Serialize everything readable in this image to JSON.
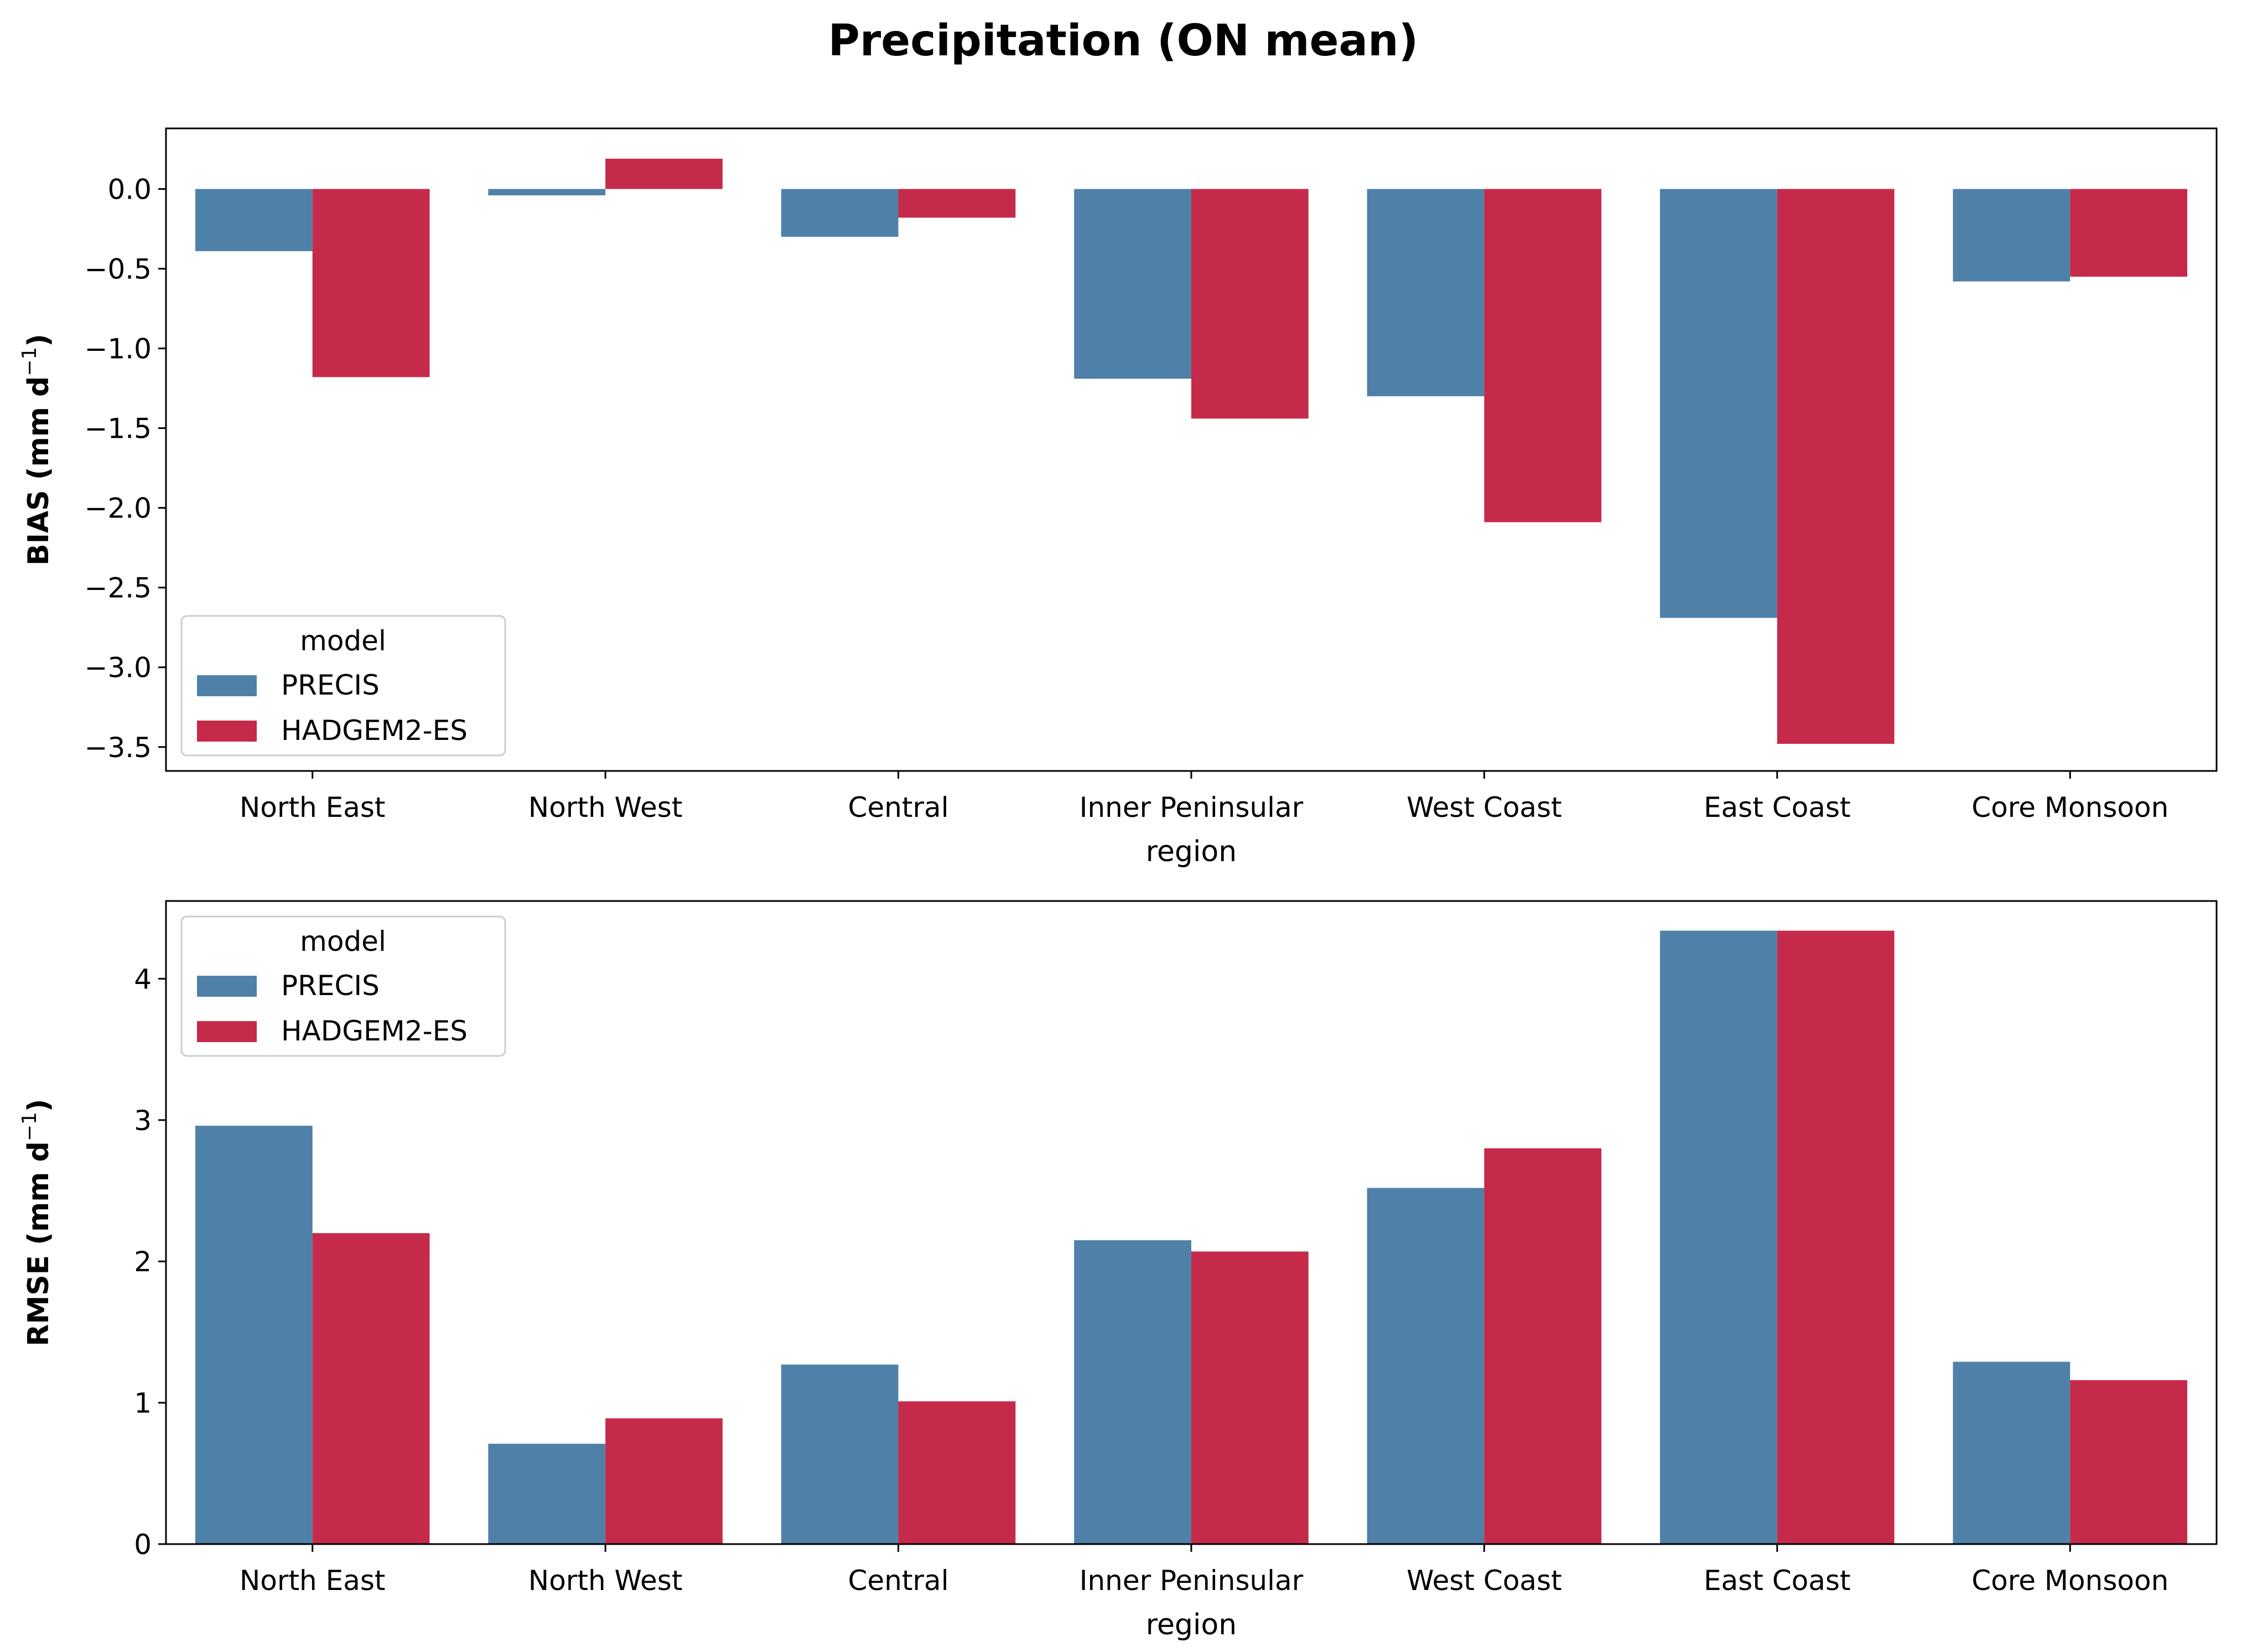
{
  "figure": {
    "title": "Precipitation (ON mean)"
  },
  "colors": {
    "PRECIS": "#4f81a8",
    "HADGEM2-ES": "#c62a4a",
    "axis": "#000000",
    "background": "#ffffff"
  },
  "chart_data": [
    {
      "type": "bar",
      "title": "",
      "xlabel": "region",
      "ylabel": "BIAS (mm d",
      "ylabel_sup": "−1",
      "ylabel_close": ")",
      "categories": [
        "North East",
        "North West",
        "Central",
        "Inner Peninsular",
        "West Coast",
        "East Coast",
        "Core Monsoon"
      ],
      "series": [
        {
          "name": "PRECIS",
          "values": [
            -0.39,
            -0.04,
            -0.3,
            -1.19,
            -1.3,
            -2.69,
            -0.58
          ]
        },
        {
          "name": "HADGEM2-ES",
          "values": [
            -1.18,
            0.19,
            -0.18,
            -1.44,
            -2.09,
            -3.48,
            -0.55
          ]
        }
      ],
      "ylim": [
        -3.65,
        0.38
      ],
      "yticks": [
        0.0,
        -0.5,
        -1.0,
        -1.5,
        -2.0,
        -2.5,
        -3.0,
        -3.5
      ],
      "ytick_labels": [
        "0.0",
        "−0.5",
        "−1.0",
        "−1.5",
        "−2.0",
        "−2.5",
        "−3.0",
        "−3.5"
      ],
      "grid": false,
      "legend": {
        "title": "model",
        "placement": "lower-left",
        "entries": [
          "PRECIS",
          "HADGEM2-ES"
        ]
      }
    },
    {
      "type": "bar",
      "title": "",
      "xlabel": "region",
      "ylabel": "RMSE (mm d",
      "ylabel_sup": "−1",
      "ylabel_close": ")",
      "categories": [
        "North East",
        "North West",
        "Central",
        "Inner Peninsular",
        "West Coast",
        "East Coast",
        "Core Monsoon"
      ],
      "series": [
        {
          "name": "PRECIS",
          "values": [
            2.96,
            0.71,
            1.27,
            2.15,
            2.52,
            4.34,
            1.29
          ]
        },
        {
          "name": "HADGEM2-ES",
          "values": [
            2.2,
            0.89,
            1.01,
            2.07,
            2.8,
            4.34,
            1.16
          ]
        }
      ],
      "ylim": [
        0,
        4.55
      ],
      "yticks": [
        0,
        1,
        2,
        3,
        4
      ],
      "ytick_labels": [
        "0",
        "1",
        "2",
        "3",
        "4"
      ],
      "grid": false,
      "legend": {
        "title": "model",
        "placement": "upper-left",
        "entries": [
          "PRECIS",
          "HADGEM2-ES"
        ]
      }
    }
  ]
}
